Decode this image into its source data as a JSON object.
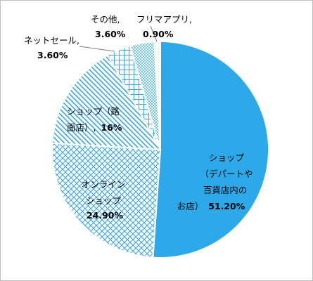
{
  "chart_data": {
    "type": "pie",
    "title": "",
    "slices": [
      {
        "name": "ショップ（デパートや百貨店内のお店）",
        "value": 51.2,
        "label_lines": [
          "ショップ",
          "（デパートや",
          "百貨店内の"
        ],
        "label_last": "お店）",
        "value_label": "51.20%",
        "pattern": "solid"
      },
      {
        "name": "オンラインショップ",
        "value": 24.9,
        "label_lines": [
          "オンライン",
          "ショップ"
        ],
        "label_last": "",
        "value_label": "24.90%",
        "pattern": "crosshatch"
      },
      {
        "name": "ショップ（路面店）",
        "value": 16,
        "label_lines": [
          "ショップ（路"
        ],
        "label_last": "面店）,",
        "value_label": "16%",
        "pattern": "diagonal"
      },
      {
        "name": "ネットセール",
        "value": 3.6,
        "label_lines": [
          "ネットセール,"
        ],
        "label_last": "",
        "value_label": "3.60%",
        "pattern": "grid"
      },
      {
        "name": "その他",
        "value": 3.6,
        "label_lines": [
          "その他,"
        ],
        "label_last": "",
        "value_label": "3.60%",
        "pattern": "dotted"
      },
      {
        "name": "フリマアプリ",
        "value": 0.9,
        "label_lines": [
          "フリマアプリ,"
        ],
        "label_last": "",
        "value_label": "0.90%",
        "pattern": "light"
      }
    ],
    "colors": {
      "primary": "#2da8e8",
      "line": "#3aa7e0",
      "border": "#ffffff",
      "leader": "#7f7f7f"
    },
    "legend": "none"
  }
}
